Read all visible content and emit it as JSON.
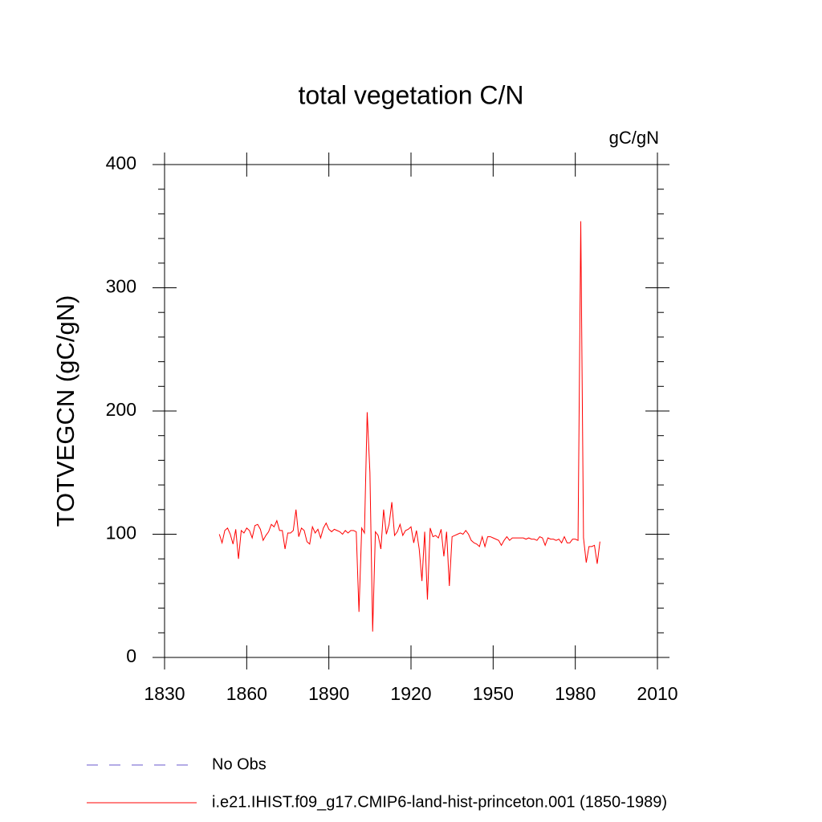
{
  "chart_data": {
    "type": "line",
    "title": "total vegetation C/N",
    "units_label": "gC/gN",
    "y_label": "TOTVEGCN  (gC/gN)",
    "xlim": [
      1830,
      2010
    ],
    "xticks": [
      1830,
      1860,
      1890,
      1920,
      1950,
      1980,
      2010
    ],
    "ylim": [
      0,
      400
    ],
    "yticks": [
      0,
      100,
      200,
      300,
      400
    ],
    "x": [
      1850,
      1851,
      1852,
      1853,
      1854,
      1855,
      1856,
      1857,
      1858,
      1859,
      1860,
      1861,
      1862,
      1863,
      1864,
      1865,
      1866,
      1867,
      1868,
      1869,
      1870,
      1871,
      1872,
      1873,
      1874,
      1875,
      1876,
      1877,
      1878,
      1879,
      1880,
      1881,
      1882,
      1883,
      1884,
      1885,
      1886,
      1887,
      1888,
      1889,
      1890,
      1891,
      1892,
      1893,
      1894,
      1895,
      1896,
      1897,
      1898,
      1899,
      1900,
      1901,
      1902,
      1903,
      1904,
      1905,
      1906,
      1907,
      1908,
      1909,
      1910,
      1911,
      1912,
      1913,
      1914,
      1915,
      1916,
      1917,
      1918,
      1919,
      1920,
      1921,
      1922,
      1923,
      1924,
      1925,
      1926,
      1927,
      1928,
      1929,
      1930,
      1931,
      1932,
      1933,
      1934,
      1935,
      1936,
      1937,
      1938,
      1939,
      1940,
      1941,
      1942,
      1943,
      1944,
      1945,
      1946,
      1947,
      1948,
      1949,
      1950,
      1951,
      1952,
      1953,
      1954,
      1955,
      1956,
      1957,
      1958,
      1959,
      1960,
      1961,
      1962,
      1963,
      1964,
      1965,
      1966,
      1967,
      1968,
      1969,
      1970,
      1971,
      1972,
      1973,
      1974,
      1975,
      1976,
      1977,
      1978,
      1979,
      1980,
      1981,
      1982,
      1983,
      1984,
      1985,
      1986,
      1987,
      1988,
      1989
    ],
    "series": [
      {
        "name": "No Obs",
        "color": "#6a5acd",
        "dashed": true
      },
      {
        "name": "i.e21.IHIST.f09_g17.CMIP6-land-hist-princeton.001 (1850-1989)",
        "color": "#ff0000",
        "values": [
          100,
          93,
          103,
          105,
          100,
          92,
          104,
          80,
          103,
          101,
          105,
          103,
          97,
          107,
          108,
          104,
          95,
          99,
          102,
          108,
          106,
          111,
          103,
          103,
          88,
          101,
          101,
          103,
          120,
          98,
          105,
          103,
          94,
          92,
          106,
          101,
          104,
          97,
          105,
          109,
          104,
          102,
          104,
          103,
          102,
          100,
          103,
          101,
          103,
          103,
          102,
          37,
          105,
          101,
          199,
          150,
          21,
          102,
          99,
          88,
          120,
          100,
          108,
          126,
          99,
          102,
          108,
          99,
          103,
          104,
          106,
          93,
          103,
          88,
          62,
          102,
          47,
          105,
          98,
          99,
          97,
          104,
          82,
          102,
          58,
          98,
          99,
          100,
          101,
          100,
          103,
          100,
          95,
          93,
          92,
          90,
          98,
          90,
          98,
          98,
          97,
          96,
          95,
          91,
          95,
          98,
          95,
          97,
          97,
          97,
          97,
          97,
          96,
          97,
          96,
          96,
          95,
          98,
          97,
          91,
          97,
          96,
          96,
          95,
          96,
          93,
          98,
          93,
          93,
          96,
          96,
          95,
          354,
          97,
          77,
          90,
          90,
          91,
          76,
          94
        ]
      }
    ]
  }
}
